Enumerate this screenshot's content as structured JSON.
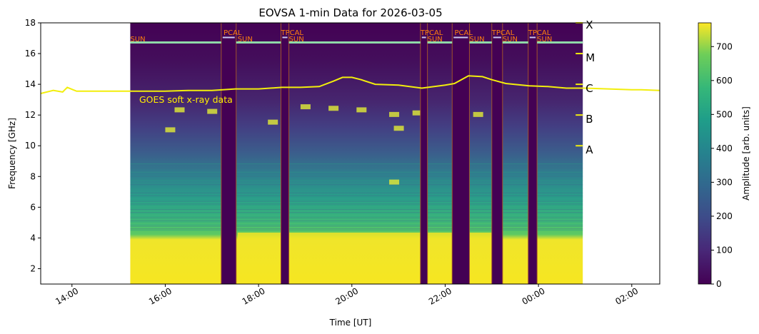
{
  "chart_data": {
    "type": "heatmap",
    "title": "EOVSA 1-min Data for 2026-03-05",
    "xlabel": "Time [UT]",
    "ylabel": "Frequency [GHz]",
    "xlim_hours": [
      13.33,
      26.6
    ],
    "ylim": [
      1.0,
      18.0
    ],
    "x_tick_labels": [
      "14:00",
      "16:00",
      "18:00",
      "20:00",
      "22:00",
      "00:00",
      "02:00"
    ],
    "x_tick_hours": [
      14,
      16,
      18,
      20,
      22,
      24,
      26
    ],
    "y_ticks": [
      2,
      4,
      6,
      8,
      10,
      12,
      14,
      16,
      18
    ],
    "colorbar": {
      "label": "Amplitude [arb. units]",
      "range": [
        0,
        770
      ],
      "ticks": [
        0,
        100,
        200,
        300,
        400,
        500,
        600,
        700
      ],
      "colormap": "viridis"
    },
    "data_span_hours": [
      15.25,
      24.95
    ],
    "gaps_hours": [
      {
        "start": 17.2,
        "end": 17.52
      },
      {
        "start": 18.48,
        "end": 18.65
      },
      {
        "start": 21.47,
        "end": 21.62
      },
      {
        "start": 22.15,
        "end": 22.52
      },
      {
        "start": 23.0,
        "end": 23.23
      },
      {
        "start": 23.78,
        "end": 23.97
      }
    ],
    "scan_labels": [
      {
        "text": "SUN",
        "hour": 15.25,
        "row": 2
      },
      {
        "text": "PCAL",
        "hour": 17.25,
        "row": 1
      },
      {
        "text": "SUN",
        "hour": 17.55,
        "row": 2
      },
      {
        "text": "TPCAL",
        "hour": 18.48,
        "row": 1
      },
      {
        "text": "SUN",
        "hour": 18.65,
        "row": 2
      },
      {
        "text": "TPCAL",
        "hour": 21.47,
        "row": 1
      },
      {
        "text": "SUN",
        "hour": 21.62,
        "row": 2
      },
      {
        "text": "PCAL",
        "hour": 22.2,
        "row": 1
      },
      {
        "text": "SUN",
        "hour": 22.52,
        "row": 2
      },
      {
        "text": "TPCAL",
        "hour": 23.0,
        "row": 1
      },
      {
        "text": "SUN",
        "hour": 23.23,
        "row": 2
      },
      {
        "text": "TPCAL",
        "hour": 23.78,
        "row": 1
      },
      {
        "text": "SUN",
        "hour": 23.97,
        "row": 2
      }
    ],
    "goes_label": "GOES soft x-ray data",
    "goes_class_markers": [
      {
        "label": "A",
        "freq": 10
      },
      {
        "label": "B",
        "freq": 12
      },
      {
        "label": "C",
        "freq": 14
      },
      {
        "label": "M",
        "freq": 16
      },
      {
        "label": "X",
        "freq": 18
      }
    ],
    "goes_series": {
      "name": "GOES soft x-ray data",
      "hours": [
        13.33,
        13.6,
        13.8,
        13.9,
        14.1,
        14.5,
        15.0,
        15.5,
        16.0,
        16.5,
        17.0,
        17.5,
        18.0,
        18.5,
        18.9,
        19.3,
        19.6,
        19.8,
        20.0,
        20.2,
        20.5,
        21.0,
        21.5,
        22.0,
        22.2,
        22.5,
        22.8,
        23.0,
        23.3,
        23.8,
        24.2,
        24.6,
        25.0,
        25.5,
        26.0,
        26.2,
        26.6
      ],
      "values": [
        13.4,
        13.6,
        13.5,
        13.8,
        13.55,
        13.55,
        13.55,
        13.55,
        13.55,
        13.6,
        13.6,
        13.7,
        13.7,
        13.8,
        13.8,
        13.85,
        14.2,
        14.45,
        14.45,
        14.3,
        14.0,
        13.95,
        13.75,
        13.95,
        14.05,
        14.55,
        14.5,
        14.3,
        14.05,
        13.9,
        13.85,
        13.75,
        13.75,
        13.7,
        13.65,
        13.65,
        13.6
      ]
    },
    "colors": {
      "goes_line": "#f2ee0c",
      "goes_label": "#ffee00",
      "scan_label": "#ff7f0e",
      "scan_band": "#8fd8a8",
      "gap_line": "#a0522d",
      "background": "#ffffff"
    }
  }
}
